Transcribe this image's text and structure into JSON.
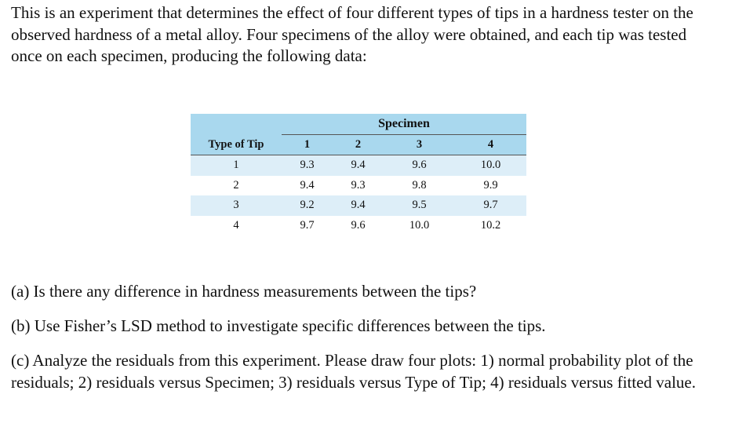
{
  "intro": "This is an experiment that determines the effect of four different types of tips in a hardness tester on the observed hardness of a metal alloy. Four specimens of the alloy were obtained, and each tip was tested once on each specimen, producing the following data:",
  "table": {
    "group_header": "Specimen",
    "row_header": "Type of Tip",
    "columns": [
      "1",
      "2",
      "3",
      "4"
    ],
    "rows": [
      [
        "1",
        "9.3",
        "9.4",
        "9.6",
        "10.0"
      ],
      [
        "2",
        "9.4",
        "9.3",
        "9.8",
        "9.9"
      ],
      [
        "3",
        "9.2",
        "9.4",
        "9.5",
        "9.7"
      ],
      [
        "4",
        "9.7",
        "9.6",
        "10.0",
        "10.2"
      ]
    ]
  },
  "questions": [
    "(a) Is there any difference in hardness measurements between the tips?",
    "(b) Use Fisher’s LSD method to investigate specific differences between the tips.",
    "(c) Analyze the residuals from this experiment. Please draw four plots: 1) normal probability plot of the residuals; 2) residuals versus Specimen; 3) residuals versus Type of Tip; 4) residuals versus fitted value."
  ]
}
